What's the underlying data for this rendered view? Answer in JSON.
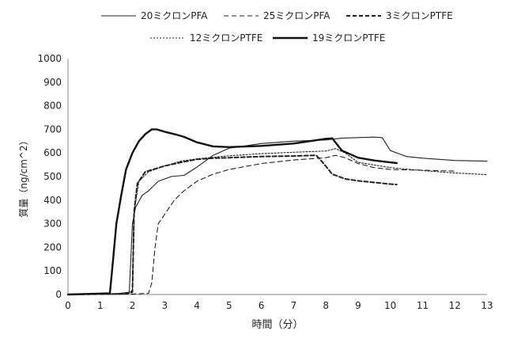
{
  "chart_data": {
    "type": "line",
    "xlabel": "時間（分）",
    "ylabel": "質量（ng/cm^2）",
    "xlim": [
      0,
      13
    ],
    "ylim": [
      0,
      1000
    ],
    "xticks": [
      0,
      1,
      2,
      3,
      4,
      5,
      6,
      7,
      8,
      9,
      10,
      11,
      12,
      13
    ],
    "yticks": [
      0,
      100,
      200,
      300,
      400,
      500,
      600,
      700,
      800,
      900,
      1000
    ],
    "grid": false,
    "legend_position": "top",
    "series": [
      {
        "name": "20ミクロンPFA",
        "style": "solid-thin",
        "color": "#222222",
        "points": [
          [
            0,
            0
          ],
          [
            1.5,
            3
          ],
          [
            1.9,
            10
          ],
          [
            2.0,
            300
          ],
          [
            2.1,
            370
          ],
          [
            2.3,
            420
          ],
          [
            2.5,
            440
          ],
          [
            2.8,
            480
          ],
          [
            3.2,
            500
          ],
          [
            3.6,
            505
          ],
          [
            4.0,
            540
          ],
          [
            4.5,
            590
          ],
          [
            5.0,
            620
          ],
          [
            6.0,
            640
          ],
          [
            7.0,
            650
          ],
          [
            8.0,
            655
          ],
          [
            8.5,
            663
          ],
          [
            9.0,
            665
          ],
          [
            9.5,
            667
          ],
          [
            9.75,
            665
          ],
          [
            10.0,
            610
          ],
          [
            10.5,
            585
          ],
          [
            11.0,
            578
          ],
          [
            12.0,
            568
          ],
          [
            13.0,
            565
          ]
        ]
      },
      {
        "name": "25ミクロンPFA",
        "style": "dashed-long",
        "color": "#222222",
        "points": [
          [
            0,
            0
          ],
          [
            2.0,
            2
          ],
          [
            2.5,
            5
          ],
          [
            2.6,
            50
          ],
          [
            2.7,
            200
          ],
          [
            2.8,
            300
          ],
          [
            3.0,
            340
          ],
          [
            3.3,
            400
          ],
          [
            3.6,
            440
          ],
          [
            4.0,
            480
          ],
          [
            4.5,
            510
          ],
          [
            5.0,
            530
          ],
          [
            6.0,
            555
          ],
          [
            7.0,
            570
          ],
          [
            8.0,
            580
          ],
          [
            8.3,
            590
          ],
          [
            8.6,
            580
          ],
          [
            9.0,
            555
          ],
          [
            9.5,
            538
          ],
          [
            10.0,
            530
          ],
          [
            11.0,
            527
          ],
          [
            12.0,
            523
          ]
        ]
      },
      {
        "name": "3ミクロンPTFE",
        "style": "dashed-bold",
        "color": "#222222",
        "points": [
          [
            0,
            0
          ],
          [
            1.8,
            3
          ],
          [
            2.0,
            10
          ],
          [
            2.05,
            350
          ],
          [
            2.15,
            470
          ],
          [
            2.4,
            520
          ],
          [
            3.0,
            545
          ],
          [
            3.5,
            560
          ],
          [
            4.0,
            573
          ],
          [
            4.5,
            578
          ],
          [
            5.0,
            580
          ],
          [
            6.0,
            585
          ],
          [
            7.0,
            587
          ],
          [
            7.7,
            590
          ],
          [
            7.9,
            560
          ],
          [
            8.2,
            510
          ],
          [
            8.6,
            490
          ],
          [
            9.0,
            482
          ],
          [
            9.5,
            475
          ],
          [
            10.0,
            468
          ],
          [
            10.2,
            466
          ]
        ]
      },
      {
        "name": "12ミクロンPTFE",
        "style": "dotted",
        "color": "#222222",
        "points": [
          [
            0,
            0
          ],
          [
            1.9,
            5
          ],
          [
            2.0,
            20
          ],
          [
            2.05,
            350
          ],
          [
            2.2,
            480
          ],
          [
            2.5,
            520
          ],
          [
            3.0,
            545
          ],
          [
            3.5,
            565
          ],
          [
            4.0,
            575
          ],
          [
            5.0,
            588
          ],
          [
            6.0,
            597
          ],
          [
            7.0,
            603
          ],
          [
            8.0,
            608
          ],
          [
            8.3,
            618
          ],
          [
            8.6,
            600
          ],
          [
            9.0,
            560
          ],
          [
            10.0,
            538
          ],
          [
            11.0,
            525
          ],
          [
            12.0,
            515
          ],
          [
            13.0,
            508
          ]
        ]
      },
      {
        "name": "19ミクロンPTFE",
        "style": "solid-bold",
        "color": "#111111",
        "points": [
          [
            0,
            0
          ],
          [
            1.3,
            5
          ],
          [
            1.4,
            150
          ],
          [
            1.5,
            300
          ],
          [
            1.65,
            420
          ],
          [
            1.8,
            530
          ],
          [
            2.0,
            600
          ],
          [
            2.2,
            650
          ],
          [
            2.4,
            680
          ],
          [
            2.6,
            700
          ],
          [
            2.75,
            700
          ],
          [
            3.0,
            690
          ],
          [
            3.3,
            680
          ],
          [
            3.6,
            668
          ],
          [
            4.0,
            645
          ],
          [
            4.5,
            628
          ],
          [
            5.0,
            625
          ],
          [
            6.0,
            630
          ],
          [
            7.0,
            640
          ],
          [
            8.0,
            660
          ],
          [
            8.2,
            662
          ],
          [
            8.5,
            610
          ],
          [
            9.0,
            580
          ],
          [
            9.5,
            568
          ],
          [
            10.0,
            560
          ],
          [
            10.2,
            557
          ]
        ]
      }
    ]
  }
}
